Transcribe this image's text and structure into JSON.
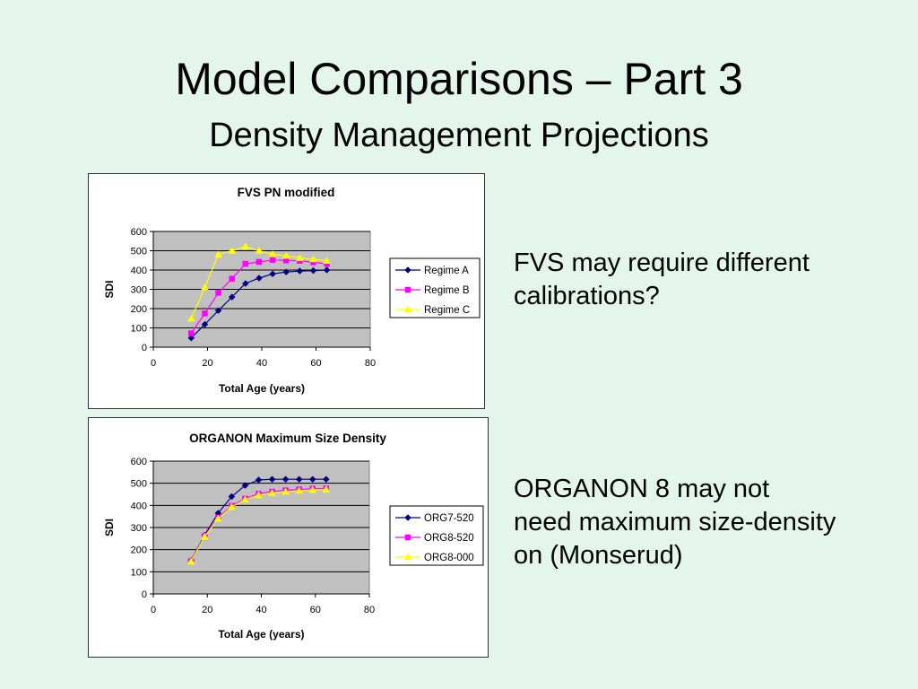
{
  "slide": {
    "title": "Model Comparisons – Part 3",
    "subtitle": "Density Management Projections",
    "notes": [
      "FVS may require different\ncalibrations?",
      "ORGANON 8 may not\nneed maximum size-density\non (Monserud)"
    ]
  },
  "chart_data": [
    {
      "type": "line",
      "title": "FVS PN modified",
      "xlabel": "Total Age (years)",
      "ylabel": "SDI",
      "xlim": [
        0,
        80
      ],
      "ylim": [
        0,
        600
      ],
      "xticks": [
        0,
        20,
        40,
        60,
        80
      ],
      "yticks": [
        0,
        100,
        200,
        300,
        400,
        500,
        600
      ],
      "grid": "horizontal",
      "plot_background": "#c0c0c0",
      "legend": "right",
      "series": [
        {
          "name": "Regime A",
          "color": "#000080",
          "marker": "diamond",
          "x": [
            14,
            19,
            24,
            29,
            34,
            39,
            44,
            49,
            54,
            59,
            64
          ],
          "y": [
            48,
            118,
            190,
            260,
            330,
            358,
            380,
            390,
            395,
            397,
            400
          ]
        },
        {
          "name": "Regime B",
          "color": "#ff00ff",
          "marker": "square",
          "x": [
            14,
            19,
            24,
            29,
            34,
            39,
            44,
            49,
            54,
            59,
            64
          ],
          "y": [
            72,
            175,
            282,
            355,
            432,
            442,
            452,
            450,
            448,
            440,
            432
          ]
        },
        {
          "name": "Regime C",
          "color": "#ffff00",
          "marker": "triangle",
          "x": [
            14,
            19,
            24,
            29,
            34,
            39,
            44,
            49,
            54,
            59,
            64
          ],
          "y": [
            148,
            310,
            480,
            500,
            522,
            500,
            482,
            474,
            462,
            456,
            448
          ]
        }
      ]
    },
    {
      "type": "line",
      "title": "ORGANON Maximum Size Density",
      "xlabel": "Total Age (years)",
      "ylabel": "SDI",
      "xlim": [
        0,
        80
      ],
      "ylim": [
        0,
        600
      ],
      "xticks": [
        0,
        20,
        40,
        60,
        80
      ],
      "yticks": [
        0,
        100,
        200,
        300,
        400,
        500,
        600
      ],
      "grid": "horizontal",
      "plot_background": "#c0c0c0",
      "legend": "right",
      "series": [
        {
          "name": "ORG7-520",
          "color": "#000080",
          "marker": "diamond",
          "x": [
            14,
            19,
            24,
            29,
            34,
            39,
            44,
            49,
            54,
            59,
            64
          ],
          "y": [
            150,
            265,
            365,
            440,
            490,
            515,
            518,
            518,
            518,
            518,
            518
          ]
        },
        {
          "name": "ORG8-520",
          "color": "#ff00ff",
          "marker": "square",
          "x": [
            14,
            19,
            24,
            29,
            34,
            39,
            44,
            49,
            54,
            59,
            64
          ],
          "y": [
            148,
            262,
            345,
            398,
            430,
            452,
            462,
            468,
            472,
            475,
            476
          ]
        },
        {
          "name": "ORG8-000",
          "color": "#ffff00",
          "marker": "triangle",
          "x": [
            14,
            19,
            24,
            29,
            34,
            39,
            44,
            49,
            54,
            59,
            64
          ],
          "y": [
            146,
            258,
            340,
            393,
            426,
            446,
            456,
            462,
            466,
            470,
            472
          ]
        }
      ]
    }
  ]
}
